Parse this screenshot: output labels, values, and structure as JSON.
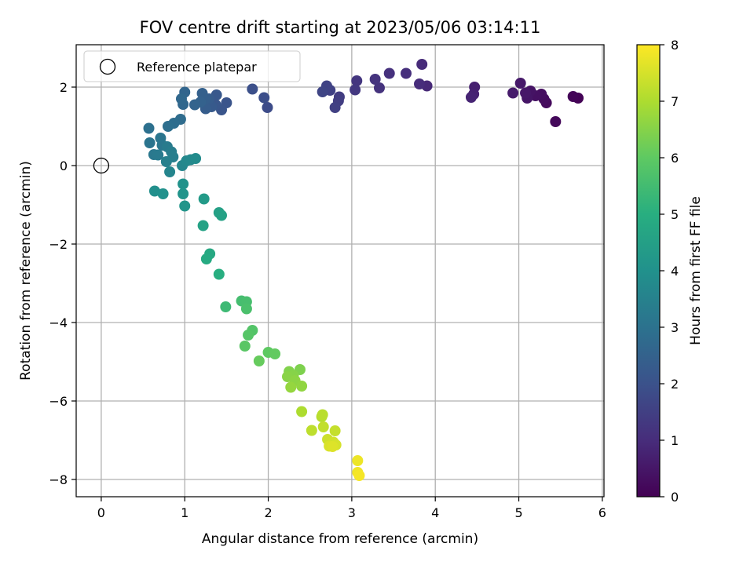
{
  "chart_data": {
    "type": "scatter",
    "title": "FOV centre drift starting at 2023/05/06 03:14:11",
    "xlabel": "Angular distance from reference (arcmin)",
    "ylabel": "Rotation from reference (arcmin)",
    "xlim": [
      -0.3,
      6.02
    ],
    "ylim": [
      -8.44,
      3.08
    ],
    "xticks": [
      0,
      1,
      2,
      3,
      4,
      5,
      6
    ],
    "yticks": [
      -8,
      -6,
      -4,
      -2,
      0,
      2
    ],
    "xtick_labels": [
      "0",
      "1",
      "2",
      "3",
      "4",
      "5",
      "6"
    ],
    "ytick_labels": [
      "−8",
      "−6",
      "−4",
      "−2",
      "0",
      "2"
    ],
    "grid": true,
    "legend": {
      "position": "top-left",
      "entries": [
        "Reference platepar"
      ]
    },
    "reference_point": {
      "x": 0,
      "y": 0,
      "label": "Reference platepar"
    },
    "colorbar": {
      "label": "Hours from first FF file",
      "range": [
        0,
        8
      ],
      "ticks": [
        0,
        1,
        2,
        3,
        4,
        5,
        6,
        7,
        8
      ],
      "tick_labels": [
        "0",
        "1",
        "2",
        "3",
        "4",
        "5",
        "6",
        "7",
        "8"
      ],
      "colormap": "viridis"
    },
    "points": [
      {
        "x": 5.71,
        "y": 1.72,
        "t": 0.05
      },
      {
        "x": 5.65,
        "y": 1.76,
        "t": 0.1
      },
      {
        "x": 5.44,
        "y": 1.12,
        "t": 0.15
      },
      {
        "x": 5.33,
        "y": 1.6,
        "t": 0.2
      },
      {
        "x": 5.3,
        "y": 1.7,
        "t": 0.25
      },
      {
        "x": 5.27,
        "y": 1.82,
        "t": 0.3
      },
      {
        "x": 5.2,
        "y": 1.78,
        "t": 0.35
      },
      {
        "x": 5.14,
        "y": 1.9,
        "t": 0.4
      },
      {
        "x": 5.1,
        "y": 1.72,
        "t": 0.45
      },
      {
        "x": 5.08,
        "y": 1.85,
        "t": 0.5
      },
      {
        "x": 5.02,
        "y": 2.1,
        "t": 0.55
      },
      {
        "x": 4.93,
        "y": 1.85,
        "t": 0.6
      },
      {
        "x": 4.47,
        "y": 2.0,
        "t": 0.7
      },
      {
        "x": 4.46,
        "y": 1.82,
        "t": 0.75
      },
      {
        "x": 4.43,
        "y": 1.74,
        "t": 0.8
      },
      {
        "x": 3.9,
        "y": 2.03,
        "t": 0.9
      },
      {
        "x": 3.84,
        "y": 2.58,
        "t": 0.95
      },
      {
        "x": 3.81,
        "y": 2.08,
        "t": 1.0
      },
      {
        "x": 3.65,
        "y": 2.35,
        "t": 1.05
      },
      {
        "x": 3.45,
        "y": 2.35,
        "t": 1.1
      },
      {
        "x": 3.33,
        "y": 1.98,
        "t": 1.15
      },
      {
        "x": 3.28,
        "y": 2.2,
        "t": 1.2
      },
      {
        "x": 3.06,
        "y": 2.16,
        "t": 1.25
      },
      {
        "x": 3.04,
        "y": 1.93,
        "t": 1.3
      },
      {
        "x": 2.85,
        "y": 1.75,
        "t": 1.4
      },
      {
        "x": 2.84,
        "y": 1.65,
        "t": 1.45
      },
      {
        "x": 2.8,
        "y": 1.48,
        "t": 1.5
      },
      {
        "x": 2.74,
        "y": 1.92,
        "t": 1.55
      },
      {
        "x": 2.7,
        "y": 2.03,
        "t": 1.6
      },
      {
        "x": 2.65,
        "y": 1.88,
        "t": 1.65
      },
      {
        "x": 1.99,
        "y": 1.48,
        "t": 1.85
      },
      {
        "x": 1.95,
        "y": 1.73,
        "t": 1.9
      },
      {
        "x": 1.81,
        "y": 1.95,
        "t": 1.95
      },
      {
        "x": 1.5,
        "y": 1.6,
        "t": 2.05
      },
      {
        "x": 1.44,
        "y": 1.42,
        "t": 2.1
      },
      {
        "x": 1.37,
        "y": 1.55,
        "t": 2.15
      },
      {
        "x": 1.38,
        "y": 1.8,
        "t": 2.2
      },
      {
        "x": 1.32,
        "y": 1.5,
        "t": 2.25
      },
      {
        "x": 1.29,
        "y": 1.7,
        "t": 2.3
      },
      {
        "x": 1.25,
        "y": 1.45,
        "t": 2.35
      },
      {
        "x": 1.25,
        "y": 1.7,
        "t": 2.4
      },
      {
        "x": 1.21,
        "y": 1.84,
        "t": 2.45
      },
      {
        "x": 1.19,
        "y": 1.62,
        "t": 2.5
      },
      {
        "x": 1.12,
        "y": 1.55,
        "t": 2.55
      },
      {
        "x": 1.0,
        "y": 1.87,
        "t": 2.6
      },
      {
        "x": 0.98,
        "y": 1.56,
        "t": 2.65
      },
      {
        "x": 0.96,
        "y": 1.7,
        "t": 2.7
      },
      {
        "x": 0.95,
        "y": 1.18,
        "t": 2.8
      },
      {
        "x": 0.87,
        "y": 1.08,
        "t": 2.85
      },
      {
        "x": 0.8,
        "y": 1.0,
        "t": 2.9
      },
      {
        "x": 0.57,
        "y": 0.95,
        "t": 2.95
      },
      {
        "x": 0.58,
        "y": 0.58,
        "t": 3.05
      },
      {
        "x": 0.71,
        "y": 0.7,
        "t": 3.1
      },
      {
        "x": 0.73,
        "y": 0.52,
        "t": 3.15
      },
      {
        "x": 0.63,
        "y": 0.28,
        "t": 3.2
      },
      {
        "x": 0.68,
        "y": 0.27,
        "t": 3.25
      },
      {
        "x": 0.79,
        "y": 0.48,
        "t": 3.3
      },
      {
        "x": 0.84,
        "y": 0.35,
        "t": 3.35
      },
      {
        "x": 0.86,
        "y": 0.22,
        "t": 3.4
      },
      {
        "x": 0.78,
        "y": 0.1,
        "t": 3.45
      },
      {
        "x": 0.82,
        "y": -0.16,
        "t": 3.6
      },
      {
        "x": 0.97,
        "y": 0.0,
        "t": 3.65
      },
      {
        "x": 1.02,
        "y": 0.12,
        "t": 3.7
      },
      {
        "x": 1.07,
        "y": 0.15,
        "t": 3.75
      },
      {
        "x": 1.13,
        "y": 0.18,
        "t": 3.8
      },
      {
        "x": 0.64,
        "y": -0.65,
        "t": 3.95
      },
      {
        "x": 0.74,
        "y": -0.72,
        "t": 4.0
      },
      {
        "x": 0.98,
        "y": -0.47,
        "t": 4.05
      },
      {
        "x": 0.98,
        "y": -0.72,
        "t": 4.1
      },
      {
        "x": 1.0,
        "y": -1.03,
        "t": 4.15
      },
      {
        "x": 1.23,
        "y": -0.85,
        "t": 4.3
      },
      {
        "x": 1.41,
        "y": -1.2,
        "t": 4.5
      },
      {
        "x": 1.44,
        "y": -1.27,
        "t": 4.55
      },
      {
        "x": 1.22,
        "y": -1.53,
        "t": 4.6
      },
      {
        "x": 1.3,
        "y": -2.25,
        "t": 4.8
      },
      {
        "x": 1.26,
        "y": -2.38,
        "t": 4.85
      },
      {
        "x": 1.41,
        "y": -2.77,
        "t": 5.0
      },
      {
        "x": 1.49,
        "y": -3.6,
        "t": 5.4
      },
      {
        "x": 1.68,
        "y": -3.45,
        "t": 5.55
      },
      {
        "x": 1.74,
        "y": -3.47,
        "t": 5.6
      },
      {
        "x": 1.74,
        "y": -3.65,
        "t": 5.65
      },
      {
        "x": 1.81,
        "y": -4.2,
        "t": 5.8
      },
      {
        "x": 1.76,
        "y": -4.32,
        "t": 5.85
      },
      {
        "x": 1.72,
        "y": -4.6,
        "t": 5.9
      },
      {
        "x": 2.0,
        "y": -4.76,
        "t": 6.0
      },
      {
        "x": 2.08,
        "y": -4.8,
        "t": 6.05
      },
      {
        "x": 1.89,
        "y": -4.98,
        "t": 6.1
      },
      {
        "x": 2.38,
        "y": -5.2,
        "t": 6.4
      },
      {
        "x": 2.25,
        "y": -5.25,
        "t": 6.45
      },
      {
        "x": 2.3,
        "y": -5.35,
        "t": 6.5
      },
      {
        "x": 2.23,
        "y": -5.38,
        "t": 6.55
      },
      {
        "x": 2.32,
        "y": -5.48,
        "t": 6.6
      },
      {
        "x": 2.4,
        "y": -5.62,
        "t": 6.65
      },
      {
        "x": 2.27,
        "y": -5.65,
        "t": 6.7
      },
      {
        "x": 2.4,
        "y": -6.27,
        "t": 7.0
      },
      {
        "x": 2.64,
        "y": -6.4,
        "t": 7.1
      },
      {
        "x": 2.65,
        "y": -6.35,
        "t": 7.15
      },
      {
        "x": 2.52,
        "y": -6.75,
        "t": 7.2
      },
      {
        "x": 2.66,
        "y": -6.66,
        "t": 7.25
      },
      {
        "x": 2.8,
        "y": -6.76,
        "t": 7.3
      },
      {
        "x": 2.71,
        "y": -6.98,
        "t": 7.4
      },
      {
        "x": 2.78,
        "y": -7.05,
        "t": 7.45
      },
      {
        "x": 2.81,
        "y": -7.12,
        "t": 7.5
      },
      {
        "x": 2.73,
        "y": -7.15,
        "t": 7.55
      },
      {
        "x": 2.77,
        "y": -7.16,
        "t": 7.6
      },
      {
        "x": 3.07,
        "y": -7.52,
        "t": 7.8
      },
      {
        "x": 3.07,
        "y": -7.82,
        "t": 7.85
      },
      {
        "x": 3.09,
        "y": -7.9,
        "t": 7.9
      }
    ]
  }
}
